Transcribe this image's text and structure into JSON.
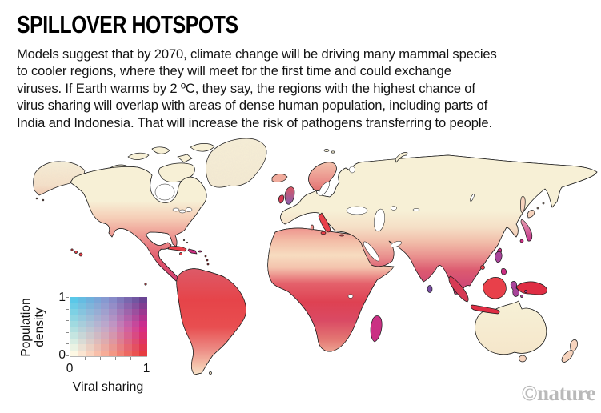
{
  "header": {
    "title": "SPILLOVER HOTSPOTS",
    "body_lines": [
      "Models suggest that by 2070, climate change will be driving many mammal species",
      "to cooler regions, where they will meet for the first time and could exchange",
      "viruses. If Earth warms by 2 ºC, they say, the regions with the highest chance of",
      "virus sharing will overlap with areas of dense human population, including parts of",
      "India and Indonesia. That will increase the risk of pathogens transferring to people."
    ]
  },
  "watermark": {
    "text": "©nature",
    "color": "#b9b9b9"
  },
  "legend": {
    "y_axis": {
      "label": "Population density",
      "min": "0",
      "max": "1",
      "ticks": 6
    },
    "x_axis": {
      "label": "Viral sharing",
      "min": "0",
      "max": "1",
      "ticks": 6
    },
    "grid_size": 10,
    "corner_colors": {
      "top_left": "#5ac8e8",
      "top_mid": "#8b93ce",
      "top_right": "#6a4494",
      "mid_left": "#a9dcdf",
      "center": "#c4a3c9",
      "mid_right": "#d52b8d",
      "bottom_left": "#fdf8e4",
      "bottom_mid": "#f5a28d",
      "bottom_right": "#e73c40"
    }
  },
  "map": {
    "ocean": "#ffffff",
    "outline": "#1a1a1a",
    "palette": {
      "cream": "#f7f0d6",
      "sand": "#f4e3c6",
      "palePink": "#f6d3bd",
      "pink": "#f0ab9c",
      "salmon": "#ec8f88",
      "red": "#e8404a",
      "deepRed": "#df2e44",
      "crimson": "#d63a54",
      "magenta": "#cc2e82",
      "plum": "#a8449a",
      "purple": "#7a4fa4",
      "violet": "#8468b4",
      "blue": "#6fb4dc",
      "paleBlue": "#a8d8e4"
    },
    "gradients": {
      "g-na": {
        "stops": [
          [
            0,
            "cream"
          ],
          [
            0.3,
            "cream"
          ],
          [
            0.45,
            "#f5cdb6"
          ],
          [
            0.58,
            "#efa097"
          ],
          [
            0.7,
            "#e87a80"
          ],
          [
            0.82,
            "#e05468"
          ],
          [
            1,
            "#cf3f72"
          ]
        ]
      },
      "g-alaska": {
        "stops": [
          [
            0,
            "cream"
          ],
          [
            0.7,
            "#f6e2c8"
          ],
          [
            1,
            "#f2c9ae"
          ]
        ]
      },
      "g-gl": {
        "stops": [
          [
            0,
            "cream"
          ],
          [
            1,
            "#f5ecd2"
          ]
        ]
      },
      "g-sa": {
        "stops": [
          [
            0,
            "#dd5a68"
          ],
          [
            0.3,
            "#e64449"
          ],
          [
            0.55,
            "#e84e50"
          ],
          [
            0.75,
            "#ec8781"
          ],
          [
            0.9,
            "#f3bda7"
          ],
          [
            1,
            "#f7e2c8"
          ]
        ]
      },
      "g-af": {
        "stops": [
          [
            0,
            "#ee958e"
          ],
          [
            0.1,
            "#f3bca6"
          ],
          [
            0.22,
            "#f7dcc0"
          ],
          [
            0.32,
            "#f4c3ad"
          ],
          [
            0.45,
            "#e4616b"
          ],
          [
            0.6,
            "#de4152"
          ],
          [
            0.75,
            "#da4a64"
          ],
          [
            0.9,
            "#e37672"
          ],
          [
            1,
            "#eda292"
          ]
        ]
      },
      "g-eu": {
        "stops": [
          [
            0,
            "cream"
          ],
          [
            0.4,
            "cream"
          ],
          [
            0.52,
            "#f5dfc6"
          ],
          [
            0.63,
            "#f1bba8"
          ],
          [
            0.73,
            "#e9908e"
          ],
          [
            0.83,
            "#dc5a70"
          ],
          [
            1,
            "#c93f78"
          ]
        ]
      },
      "g-au": {
        "stops": [
          [
            0,
            "#f7f1d7"
          ],
          [
            1,
            "#f5e6ca"
          ]
        ]
      },
      "g-scan": {
        "stops": [
          [
            0,
            "#f2c0ab"
          ],
          [
            0.6,
            "#eb938c"
          ],
          [
            1,
            "#e3706f"
          ]
        ]
      },
      "g-jp": {
        "stops": [
          [
            0,
            "#eaa2b2"
          ],
          [
            1,
            "#c13089"
          ]
        ]
      },
      "g-uk": {
        "stops": [
          [
            0,
            "#d85763"
          ],
          [
            1,
            "#8a5fae"
          ]
        ]
      }
    },
    "overlays": {
      "north_america": [
        [
          235,
          281,
          17,
          13,
          -10,
          "violet",
          0.5
        ],
        [
          228,
          270,
          10,
          5,
          0,
          "blue",
          0.45
        ],
        [
          244,
          291,
          7,
          4,
          0,
          "blue",
          0.4
        ],
        [
          212,
          291,
          22,
          11,
          -8,
          "deepRed",
          0.5
        ],
        [
          247,
          258,
          8,
          4,
          0,
          "blue",
          0.35
        ],
        [
          175,
          303,
          26,
          14,
          -33,
          "#c03a7a",
          0.45
        ],
        [
          208,
          333,
          15,
          11,
          -40,
          "#b63a85",
          0.5
        ],
        [
          130,
          270,
          13,
          19,
          0,
          "#f6d9c0",
          0.5
        ],
        [
          148,
          295,
          14,
          8,
          -30,
          "magenta",
          0.35
        ]
      ],
      "south_america": [
        [
          255,
          374,
          34,
          17,
          -8,
          "#e82f3c",
          0.5
        ],
        [
          240,
          347,
          18,
          5,
          0,
          "violet",
          0.4
        ],
        [
          296,
          399,
          12,
          16,
          0,
          "#f2b4a4",
          0.6
        ],
        [
          228,
          413,
          5,
          26,
          0,
          "#f4c9b2",
          0.5
        ],
        [
          246,
          457,
          12,
          10,
          0,
          "#f6e3cb",
          0.7
        ],
        [
          262,
          430,
          10,
          12,
          0,
          "#ef9a94",
          0.4
        ]
      ],
      "africa": [
        [
          349,
          301,
          9,
          13,
          0,
          "red",
          0.5
        ],
        [
          392,
          312,
          40,
          13,
          0,
          "#f9e3cb",
          0.7
        ],
        [
          388,
          337,
          44,
          6,
          -2,
          "blue",
          0.5
        ],
        [
          386,
          345,
          42,
          6,
          -2,
          "violet",
          0.45
        ],
        [
          448,
          303,
          10,
          7,
          0,
          "#f3b4a4",
          0.4
        ],
        [
          400,
          371,
          17,
          12,
          0,
          "purple",
          0.45
        ],
        [
          392,
          364,
          9,
          5,
          0,
          "blue",
          0.4
        ],
        [
          455,
          362,
          11,
          18,
          0,
          "#e33a4a",
          0.4
        ],
        [
          414,
          419,
          11,
          9,
          0,
          "#f2c0ac",
          0.5
        ],
        [
          472,
          334,
          6,
          3,
          0,
          "paleBlue",
          0.4
        ],
        [
          420,
          390,
          8,
          6,
          0,
          "violet",
          0.3
        ]
      ],
      "eurasia": [
        [
          404,
          222,
          18,
          16,
          0,
          "salmon",
          0.45
        ],
        [
          450,
          228,
          20,
          12,
          0,
          "#f0c0b0",
          0.4
        ],
        [
          398,
          257,
          40,
          12,
          -5,
          "violet",
          0.5
        ],
        [
          384,
          250,
          14,
          6,
          0,
          "blue",
          0.45
        ],
        [
          416,
          264,
          12,
          6,
          0,
          "blue",
          0.35
        ],
        [
          368,
          272,
          12,
          7,
          0,
          "#dd4150",
          0.5
        ],
        [
          367,
          271,
          7,
          4,
          0,
          "purple",
          0.4
        ],
        [
          428,
          276,
          12,
          6,
          0,
          "blue",
          0.35
        ],
        [
          452,
          250,
          18,
          8,
          0,
          "#8fb8da",
          0.3
        ],
        [
          495,
          263,
          45,
          15,
          0,
          "#f2c2ae",
          0.45
        ],
        [
          480,
          258,
          9,
          4,
          0,
          "#8fb8da",
          0.3
        ],
        [
          508,
          270,
          7,
          3,
          0,
          "#8fb8da",
          0.25
        ],
        [
          490,
          298,
          28,
          11,
          0,
          "salmon",
          0.45
        ],
        [
          462,
          305,
          8,
          5,
          0,
          "blue",
          0.4
        ],
        [
          474,
          330,
          13,
          5,
          0,
          "#e55560",
          0.35
        ],
        [
          552,
          293,
          36,
          13,
          0,
          "cream",
          0.95
        ],
        [
          525,
          310,
          30,
          10,
          -12,
          "purple",
          0.55
        ],
        [
          527,
          324,
          25,
          19,
          0,
          "purple",
          0.75
        ],
        [
          532,
          334,
          10,
          11,
          0,
          "#cc2277",
          0.6
        ],
        [
          547,
          321,
          9,
          6,
          0,
          "#dd3352",
          0.5
        ],
        [
          580,
          338,
          21,
          19,
          0,
          "#e42840",
          0.8
        ],
        [
          600,
          330,
          9,
          15,
          0,
          "plum",
          0.5
        ],
        [
          612,
          306,
          21,
          12,
          0,
          "plum",
          0.65
        ],
        [
          629,
          305,
          7,
          9,
          0,
          "magenta",
          0.5
        ],
        [
          624,
          279,
          19,
          10,
          0,
          "violet",
          0.55
        ],
        [
          609,
          263,
          19,
          6,
          0,
          "blue",
          0.55
        ],
        [
          585,
          259,
          11,
          4,
          0,
          "blue",
          0.4
        ],
        [
          643,
          289,
          5,
          8,
          0,
          "magenta",
          0.7
        ]
      ],
      "australia": [
        [
          630,
          385,
          24,
          4,
          0,
          "#e87060",
          0.4
        ],
        [
          664,
          399,
          12,
          9,
          0,
          "#f2c4ac",
          0.5
        ],
        [
          608,
          431,
          7,
          3,
          0,
          "#f0b8a8",
          0.4
        ],
        [
          666,
          427,
          4,
          2,
          0,
          "paleBlue",
          0.45
        ]
      ]
    }
  }
}
